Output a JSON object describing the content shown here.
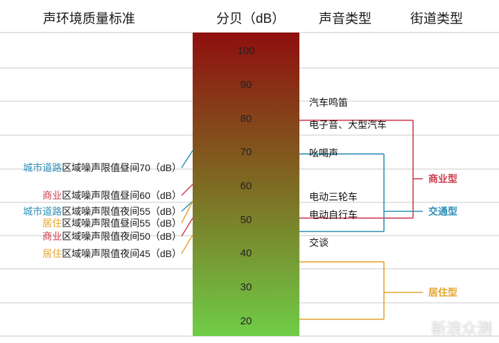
{
  "headers": {
    "env_standard": "声环境质量标准",
    "decibel": "分贝（dB）",
    "sound_type": "声音类型",
    "street_type": "街道类型"
  },
  "colors": {
    "red": "#cf3b4c",
    "blue": "#2f8fb6",
    "orange": "#e4a52f",
    "green": "#3f8f3f",
    "bar_top": "#8f0f0f",
    "bar_bottom": "#6fcd47"
  },
  "scale": {
    "min": 15,
    "max": 105,
    "ticks": [
      100,
      90,
      80,
      70,
      60,
      50,
      40,
      30,
      20
    ]
  },
  "standards": [
    {
      "zone": "城市道路",
      "text": "区域噪声限值昼间70（dB）",
      "color": "blue",
      "value": 70
    },
    {
      "zone": "商业",
      "text": "区域噪声限值昼间60（dB）",
      "color": "red",
      "value": 60
    },
    {
      "zone": "城市道路",
      "text": "区域噪声限值夜间55（dB）",
      "color": "blue",
      "value": 55
    },
    {
      "zone": "居住",
      "text": "区域噪声限值昼间55（dB）",
      "color": "orange",
      "value": 55
    },
    {
      "zone": "商业",
      "text": "区域噪声限值夜间50（dB）",
      "color": "red",
      "value": 50
    },
    {
      "zone": "居住",
      "text": "区域噪声限值夜间45（dB）",
      "color": "orange",
      "value": 45
    }
  ],
  "sounds": [
    {
      "label": "汽车鸣笛",
      "value": 86
    },
    {
      "label": "电子音、大型汽车",
      "value": 79
    },
    {
      "label": "吆喝声",
      "value": 69
    },
    {
      "label": "电动三轮车",
      "value": 56
    },
    {
      "label": "电动自行车",
      "value": 51
    },
    {
      "label": "交谈",
      "value": 41
    }
  ],
  "street_types": [
    {
      "label": "商业型",
      "color": "red",
      "range": [
        50,
        79
      ]
    },
    {
      "label": "交通型",
      "color": "blue",
      "range": [
        46,
        69
      ]
    },
    {
      "label": "居住型",
      "color": "orange",
      "range": [
        20,
        37
      ]
    }
  ],
  "watermark": "新浪众测"
}
